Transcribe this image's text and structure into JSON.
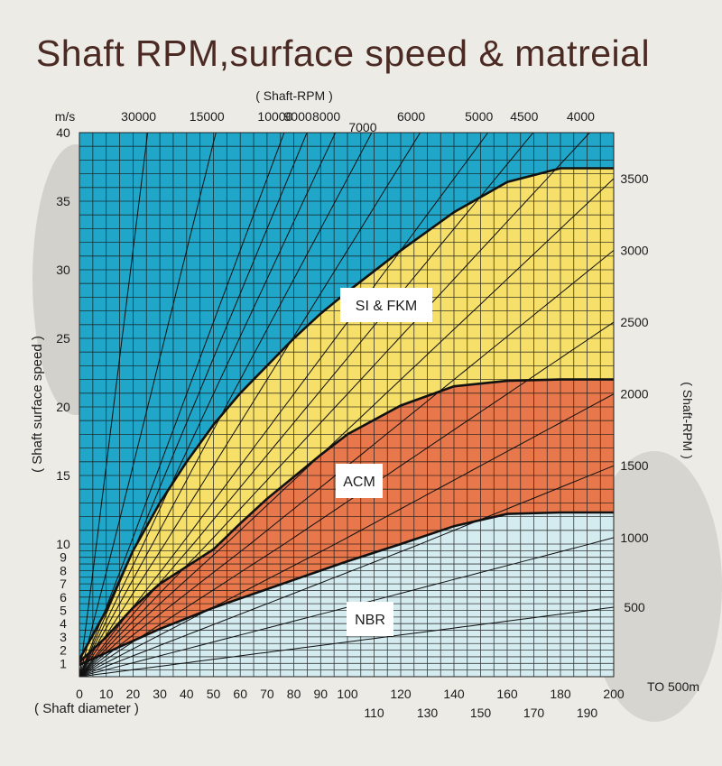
{
  "chart_data": {
    "type": "area",
    "title": "Shaft RPM,surface speed & matreial",
    "xlabel": "( Shaft diameter )",
    "ylabel": "( Shaft surface speed )",
    "y_unit": "m/s",
    "top_axis_label": "( Shaft-RPM )",
    "right_axis_label": "( Shaft-RPM )",
    "x_note": "TO 500m",
    "xlim": [
      0,
      200
    ],
    "ylim": [
      0,
      40
    ],
    "y_scale": "piecewise: 0-10 stretched, 10-40 linear",
    "grid": true,
    "x_ticks_row1": [
      "0",
      "10",
      "20",
      "30",
      "40",
      "50",
      "60",
      "70",
      "80",
      "90",
      "100",
      "120",
      "140",
      "160",
      "180",
      "200"
    ],
    "x_ticks_row2": [
      "110",
      "130",
      "150",
      "170",
      "190"
    ],
    "y_ticks": [
      "1",
      "2",
      "3",
      "4",
      "5",
      "6",
      "7",
      "8",
      "9",
      "10",
      "15",
      "20",
      "25",
      "30",
      "35",
      "40"
    ],
    "top_rpm_labels": [
      "30000",
      "15000",
      "10000",
      "9000",
      "8000",
      "7000",
      "6000",
      "5000",
      "4500",
      "4000"
    ],
    "right_rpm_labels": [
      "3500",
      "3000",
      "2500",
      "2000",
      "1500",
      "1000",
      "500"
    ],
    "rpm_lines": [
      30000,
      15000,
      10000,
      9000,
      8000,
      7000,
      6000,
      5000,
      4500,
      4000,
      3500,
      3000,
      2500,
      2000,
      1500,
      1000,
      500
    ],
    "regions": [
      {
        "name": "SI & FKM",
        "color": "#f6e06a",
        "boundary": [
          [
            0,
            1.3
          ],
          [
            10,
            5
          ],
          [
            20,
            9.5
          ],
          [
            30,
            13
          ],
          [
            40,
            16
          ],
          [
            50,
            18.7
          ],
          [
            60,
            21
          ],
          [
            70,
            23
          ],
          [
            80,
            25
          ],
          [
            90,
            26.8
          ],
          [
            100,
            28.4
          ],
          [
            120,
            31.4
          ],
          [
            140,
            34.2
          ],
          [
            160,
            36.4
          ],
          [
            180,
            37.4
          ],
          [
            200,
            37.4
          ]
        ]
      },
      {
        "name": "ACM",
        "color": "#e8784b",
        "boundary": [
          [
            0,
            1.1
          ],
          [
            10,
            3
          ],
          [
            20,
            5.2
          ],
          [
            30,
            7
          ],
          [
            40,
            8.3
          ],
          [
            50,
            9.6
          ],
          [
            60,
            11.5
          ],
          [
            70,
            13.3
          ],
          [
            80,
            14.9
          ],
          [
            90,
            16.5
          ],
          [
            100,
            18
          ],
          [
            120,
            20.1
          ],
          [
            140,
            21.5
          ],
          [
            160,
            21.9
          ],
          [
            180,
            22
          ],
          [
            200,
            22
          ]
        ]
      },
      {
        "name": "NBR",
        "color": "#d4ebf0",
        "boundary": [
          [
            0,
            0.9
          ],
          [
            10,
            1.8
          ],
          [
            20,
            2.7
          ],
          [
            30,
            3.6
          ],
          [
            40,
            4.4
          ],
          [
            50,
            5.2
          ],
          [
            60,
            5.9
          ],
          [
            70,
            6.6
          ],
          [
            80,
            7.3
          ],
          [
            90,
            8
          ],
          [
            100,
            8.7
          ],
          [
            120,
            10
          ],
          [
            140,
            11.3
          ],
          [
            160,
            12.2
          ],
          [
            180,
            12.3
          ],
          [
            200,
            12.3
          ]
        ]
      }
    ],
    "background_color": "#1fa6c9"
  }
}
